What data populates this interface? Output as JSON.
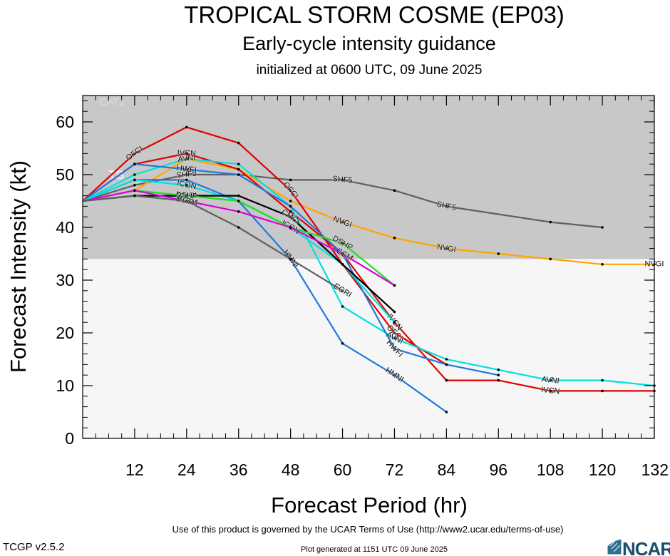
{
  "title": "TROPICAL STORM COSME (EP03)",
  "subtitle": "Early-cycle intensity guidance",
  "init_text": "initialized at 0600 UTC, 09 June 2025",
  "footer_terms": "Use of this product is governed by the UCAR Terms of Use (http://www2.ucar.edu/terms-of-use)",
  "footer_generated": "Plot generated at 1151 UTC   09 June 2025",
  "version": "TCGP v2.5.2",
  "logo_text": "NCAR",
  "chart_data": {
    "type": "line",
    "title": "TROPICAL STORM COSME (EP03)",
    "xlabel": "Forecast Period (hr)",
    "ylabel": "Forecast Intensity (kt)",
    "xlim": [
      0,
      132
    ],
    "ylim": [
      0,
      65
    ],
    "xticks": [
      12,
      24,
      36,
      48,
      60,
      72,
      84,
      96,
      108,
      120,
      132
    ],
    "yticks": [
      0,
      10,
      20,
      30,
      40,
      50,
      60
    ],
    "grid": false,
    "bands": [
      {
        "name": "TS",
        "ymin": 34,
        "ymax": 64,
        "color": "#c8c8c8",
        "label": "TS"
      },
      {
        "name": "TD",
        "ymin": 0,
        "ymax": 34,
        "color": "#f6f6f6",
        "label": ""
      },
      {
        "name": "CAT1",
        "ymin": 64,
        "ymax": 65,
        "color": "#c8c8c8",
        "label": "CAT1"
      }
    ],
    "series": [
      {
        "name": "SHF5",
        "color": "#606060",
        "labels_at": [
          24,
          60,
          84
        ],
        "x": [
          0,
          12,
          24,
          36,
          48,
          60,
          72,
          84,
          108,
          120
        ],
        "y": [
          45,
          48,
          50,
          50,
          49,
          49,
          47,
          44,
          41,
          40
        ]
      },
      {
        "name": "NVGI",
        "color": "#ffa500",
        "labels_at": [
          60,
          84,
          132
        ],
        "x": [
          0,
          12,
          24,
          36,
          48,
          60,
          72,
          84,
          96,
          108,
          120,
          132
        ],
        "y": [
          45,
          47,
          53,
          51,
          45,
          41,
          38,
          36,
          35,
          34,
          33,
          33
        ]
      },
      {
        "name": "OFCI",
        "color": "#e00000",
        "labels_at": [
          12,
          48,
          72
        ],
        "x": [
          0,
          12,
          24,
          36,
          48,
          60,
          72,
          84
        ],
        "y": [
          45,
          54,
          59,
          56,
          47,
          33,
          20,
          14
        ]
      },
      {
        "name": "IVCN",
        "color": "#e00000",
        "labels_at": [
          24,
          72,
          108
        ],
        "x": [
          0,
          12,
          24,
          36,
          48,
          60,
          72,
          84,
          96,
          108,
          120,
          132
        ],
        "y": [
          45,
          52,
          54,
          51,
          43,
          35,
          22,
          11,
          11,
          9,
          9,
          9
        ]
      },
      {
        "name": "AVNI",
        "color": "#00e0e0",
        "labels_at": [
          24,
          72,
          108
        ],
        "x": [
          0,
          12,
          24,
          36,
          48,
          60,
          72,
          84,
          96,
          108,
          120,
          132
        ],
        "y": [
          45,
          50,
          53,
          52,
          44,
          25,
          19,
          15,
          13,
          11,
          11,
          10
        ]
      },
      {
        "name": "HWFI",
        "color": "#1e78e0",
        "labels_at": [
          24,
          72
        ],
        "x": [
          0,
          12,
          24,
          36,
          48,
          60,
          72,
          84,
          96
        ],
        "y": [
          45,
          52,
          51,
          50,
          44,
          35,
          17,
          14,
          12
        ]
      },
      {
        "name": "HMNI",
        "color": "#1e78e0",
        "labels_at": [
          48,
          72
        ],
        "x": [
          0,
          12,
          24,
          36,
          48,
          60,
          72,
          84
        ],
        "y": [
          45,
          49,
          49,
          45,
          34,
          18,
          12,
          5
        ]
      },
      {
        "name": "ICON",
        "color": "#00e0e0",
        "labels_at": [
          24,
          48
        ],
        "x": [
          0,
          12,
          24,
          36,
          48,
          60,
          72
        ],
        "y": [
          45,
          49,
          48,
          45,
          40,
          33,
          22
        ]
      },
      {
        "name": "CMCI",
        "color": "#000000",
        "labels_at": [
          24,
          48
        ],
        "x": [
          0,
          12,
          24,
          36,
          48,
          60,
          72
        ],
        "y": [
          45,
          46,
          46,
          46,
          42,
          33,
          24
        ]
      },
      {
        "name": "DSHP",
        "color": "#22dd22",
        "labels_at": [
          24,
          60
        ],
        "x": [
          0,
          12,
          24,
          36,
          48,
          60,
          72
        ],
        "y": [
          45,
          47,
          46,
          45,
          40,
          37,
          29
        ]
      },
      {
        "name": "LGEM",
        "color": "#dd00dd",
        "labels_at": [
          24,
          60
        ],
        "x": [
          0,
          12,
          24,
          36,
          48,
          60,
          72
        ],
        "y": [
          45,
          47,
          45,
          43,
          40,
          35,
          29
        ]
      },
      {
        "name": "EGRI",
        "color": "#606060",
        "labels_at": [
          24,
          60
        ],
        "x": [
          0,
          12,
          24,
          36,
          48,
          60
        ],
        "y": [
          45,
          46,
          45,
          40,
          34,
          28
        ]
      }
    ]
  }
}
